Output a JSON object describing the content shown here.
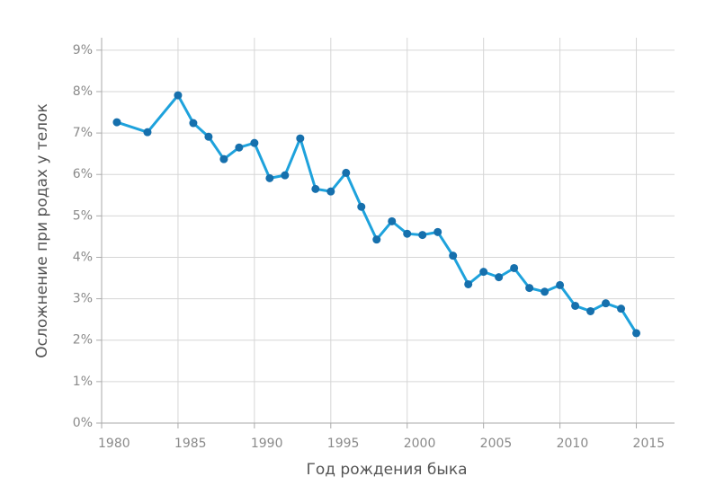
{
  "chart_data": {
    "type": "line",
    "x_label": "Год рождения быка",
    "y_label": "Осложнение при родах у телок",
    "x": [
      1981,
      1983,
      1985,
      1986,
      1987,
      1988,
      1989,
      1990,
      1991,
      1992,
      1993,
      1994,
      1995,
      1996,
      1997,
      1998,
      1999,
      2000,
      2001,
      2002,
      2003,
      2004,
      2005,
      2006,
      2007,
      2008,
      2009,
      2010,
      2011,
      2012,
      2013,
      2014,
      2015
    ],
    "values": [
      7.26,
      7.02,
      7.91,
      7.24,
      6.91,
      6.37,
      6.65,
      6.76,
      5.91,
      5.98,
      6.87,
      5.65,
      5.59,
      6.04,
      5.22,
      4.43,
      4.87,
      4.57,
      4.54,
      4.61,
      4.04,
      3.35,
      3.65,
      3.52,
      3.74,
      3.26,
      3.17,
      3.33,
      2.83,
      2.7,
      2.89,
      2.76,
      2.17
    ],
    "line_color": "#1ea2dc",
    "marker_color": "#1670ad",
    "xlim": [
      1980,
      2017.5
    ],
    "xticks": [
      1980,
      1985,
      1990,
      1995,
      2000,
      2005,
      2010,
      2015
    ],
    "ylim": [
      0,
      9.3
    ],
    "yticks": [
      {
        "value": 0,
        "label": "0%"
      },
      {
        "value": 1,
        "label": "1%"
      },
      {
        "value": 2,
        "label": "2%"
      },
      {
        "value": 3,
        "label": "3%"
      },
      {
        "value": 4,
        "label": "4%"
      },
      {
        "value": 5,
        "label": "5%"
      },
      {
        "value": 6,
        "label": "6%"
      },
      {
        "value": 7,
        "label": "7%"
      },
      {
        "value": 8,
        "label": "8%"
      },
      {
        "value": 9,
        "label": "9%"
      }
    ],
    "grid": true
  }
}
